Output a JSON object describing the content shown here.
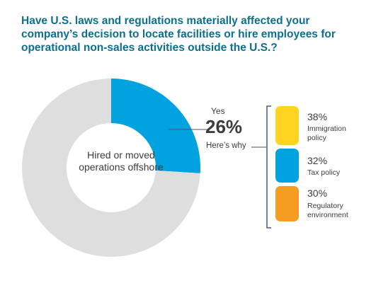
{
  "chart_data": {
    "type": "pie",
    "title": "Have U.S. laws and regulations materially affected your company’s decision to locate facilities or hire employees for operational non-sales activities outside the U.S.?",
    "center_label": "Hired or moved operations offshore",
    "slices": [
      {
        "label": "Yes",
        "value": 26,
        "display": "26%",
        "color": "#00a2e0"
      },
      {
        "label": "",
        "value": 74,
        "color": "#dedede"
      }
    ],
    "breakdown_title": "Here’s why",
    "breakdown": [
      {
        "label": "Immigration policy",
        "lines": [
          "Immigration",
          "policy"
        ],
        "value": 38,
        "display": "38%",
        "color": "#ffd41f"
      },
      {
        "label": "Tax policy",
        "lines": [
          "Tax policy"
        ],
        "value": 32,
        "display": "32%",
        "color": "#00a2e0"
      },
      {
        "label": "Regulatory environment",
        "lines": [
          "Regulatory",
          "environment"
        ],
        "value": 30,
        "display": "30%",
        "color": "#f69c21"
      }
    ]
  }
}
